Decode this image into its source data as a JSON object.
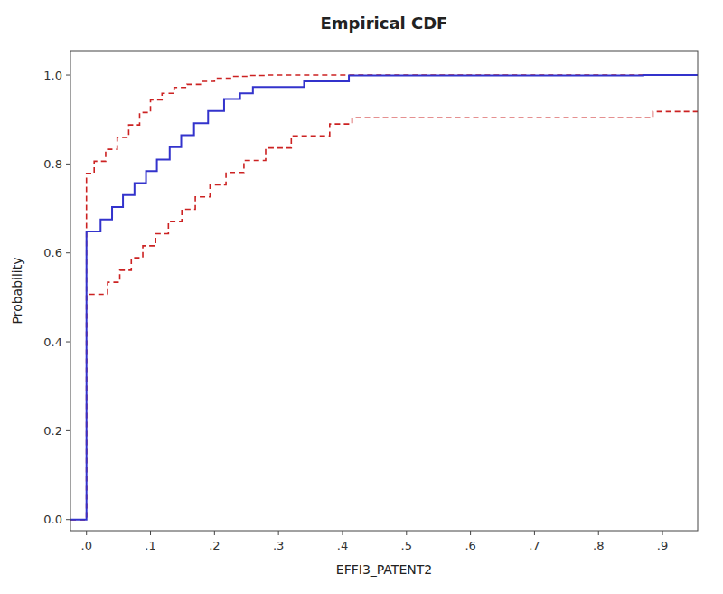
{
  "chart_data": {
    "type": "line",
    "title": "Empirical CDF",
    "xlabel": "EFFI3_PATENT2",
    "ylabel": "Probability",
    "xlim": [
      -0.025,
      0.955
    ],
    "ylim": [
      -0.025,
      1.055
    ],
    "xticks": [
      {
        "value": 0.0,
        "label": ".0"
      },
      {
        "value": 0.1,
        "label": ".1"
      },
      {
        "value": 0.2,
        "label": ".2"
      },
      {
        "value": 0.3,
        "label": ".3"
      },
      {
        "value": 0.4,
        "label": ".4"
      },
      {
        "value": 0.5,
        "label": ".5"
      },
      {
        "value": 0.6,
        "label": ".6"
      },
      {
        "value": 0.7,
        "label": ".7"
      },
      {
        "value": 0.8,
        "label": ".8"
      },
      {
        "value": 0.9,
        "label": ".9"
      }
    ],
    "yticks": [
      {
        "value": 0.0,
        "label": "0.0"
      },
      {
        "value": 0.2,
        "label": "0.2"
      },
      {
        "value": 0.4,
        "label": "0.4"
      },
      {
        "value": 0.6,
        "label": "0.6"
      },
      {
        "value": 0.8,
        "label": "0.8"
      },
      {
        "value": 1.0,
        "label": "1.0"
      }
    ],
    "grid": false,
    "series": [
      {
        "color": "#cc2222",
        "line_style": "dashed",
        "x": [
          -0.025,
          0.0,
          0.0,
          0.012,
          0.012,
          0.03,
          0.03,
          0.048,
          0.048,
          0.066,
          0.066,
          0.083,
          0.083,
          0.1,
          0.1,
          0.118,
          0.118,
          0.137,
          0.137,
          0.157,
          0.157,
          0.178,
          0.178,
          0.2,
          0.2,
          0.225,
          0.225,
          0.252,
          0.252,
          0.28,
          0.28,
          0.31,
          0.31,
          0.41,
          0.41,
          0.955
        ],
        "values": [
          0.0,
          0.0,
          0.779,
          0.779,
          0.806,
          0.806,
          0.833,
          0.833,
          0.86,
          0.86,
          0.888,
          0.888,
          0.916,
          0.916,
          0.944,
          0.944,
          0.959,
          0.959,
          0.972,
          0.972,
          0.979,
          0.979,
          0.986,
          0.986,
          0.993,
          0.993,
          0.997,
          0.997,
          0.999,
          0.999,
          1.0,
          1.0,
          1.0,
          1.0,
          1.0,
          1.0
        ]
      },
      {
        "color": "#cc2222",
        "line_style": "dashed",
        "x": [
          -0.025,
          0.0,
          0.0,
          0.033,
          0.033,
          0.052,
          0.052,
          0.07,
          0.07,
          0.088,
          0.088,
          0.108,
          0.108,
          0.128,
          0.128,
          0.149,
          0.149,
          0.17,
          0.17,
          0.193,
          0.193,
          0.218,
          0.218,
          0.246,
          0.246,
          0.28,
          0.28,
          0.32,
          0.32,
          0.38,
          0.38,
          0.415,
          0.415,
          0.87,
          0.87,
          0.885,
          0.885,
          0.955
        ],
        "values": [
          0.0,
          0.0,
          0.507,
          0.507,
          0.534,
          0.534,
          0.561,
          0.561,
          0.589,
          0.589,
          0.616,
          0.616,
          0.643,
          0.643,
          0.671,
          0.671,
          0.698,
          0.698,
          0.726,
          0.726,
          0.753,
          0.753,
          0.781,
          0.781,
          0.808,
          0.808,
          0.836,
          0.836,
          0.863,
          0.863,
          0.89,
          0.89,
          0.904,
          0.904,
          0.904,
          0.904,
          0.918,
          0.918
        ]
      },
      {
        "color": "#3333cc",
        "line_style": "solid",
        "x": [
          -0.025,
          0.0,
          0.0,
          0.022,
          0.022,
          0.04,
          0.04,
          0.057,
          0.057,
          0.075,
          0.075,
          0.093,
          0.093,
          0.11,
          0.11,
          0.13,
          0.13,
          0.148,
          0.148,
          0.168,
          0.168,
          0.19,
          0.19,
          0.215,
          0.215,
          0.24,
          0.24,
          0.26,
          0.26,
          0.34,
          0.34,
          0.41,
          0.41,
          0.87,
          0.87,
          0.955
        ],
        "values": [
          0.0,
          0.0,
          0.648,
          0.648,
          0.675,
          0.675,
          0.703,
          0.703,
          0.73,
          0.73,
          0.757,
          0.757,
          0.784,
          0.784,
          0.81,
          0.81,
          0.838,
          0.838,
          0.865,
          0.865,
          0.892,
          0.892,
          0.919,
          0.919,
          0.946,
          0.946,
          0.959,
          0.959,
          0.973,
          0.973,
          0.986,
          0.986,
          0.999,
          0.999,
          1.0,
          1.0
        ]
      }
    ]
  }
}
